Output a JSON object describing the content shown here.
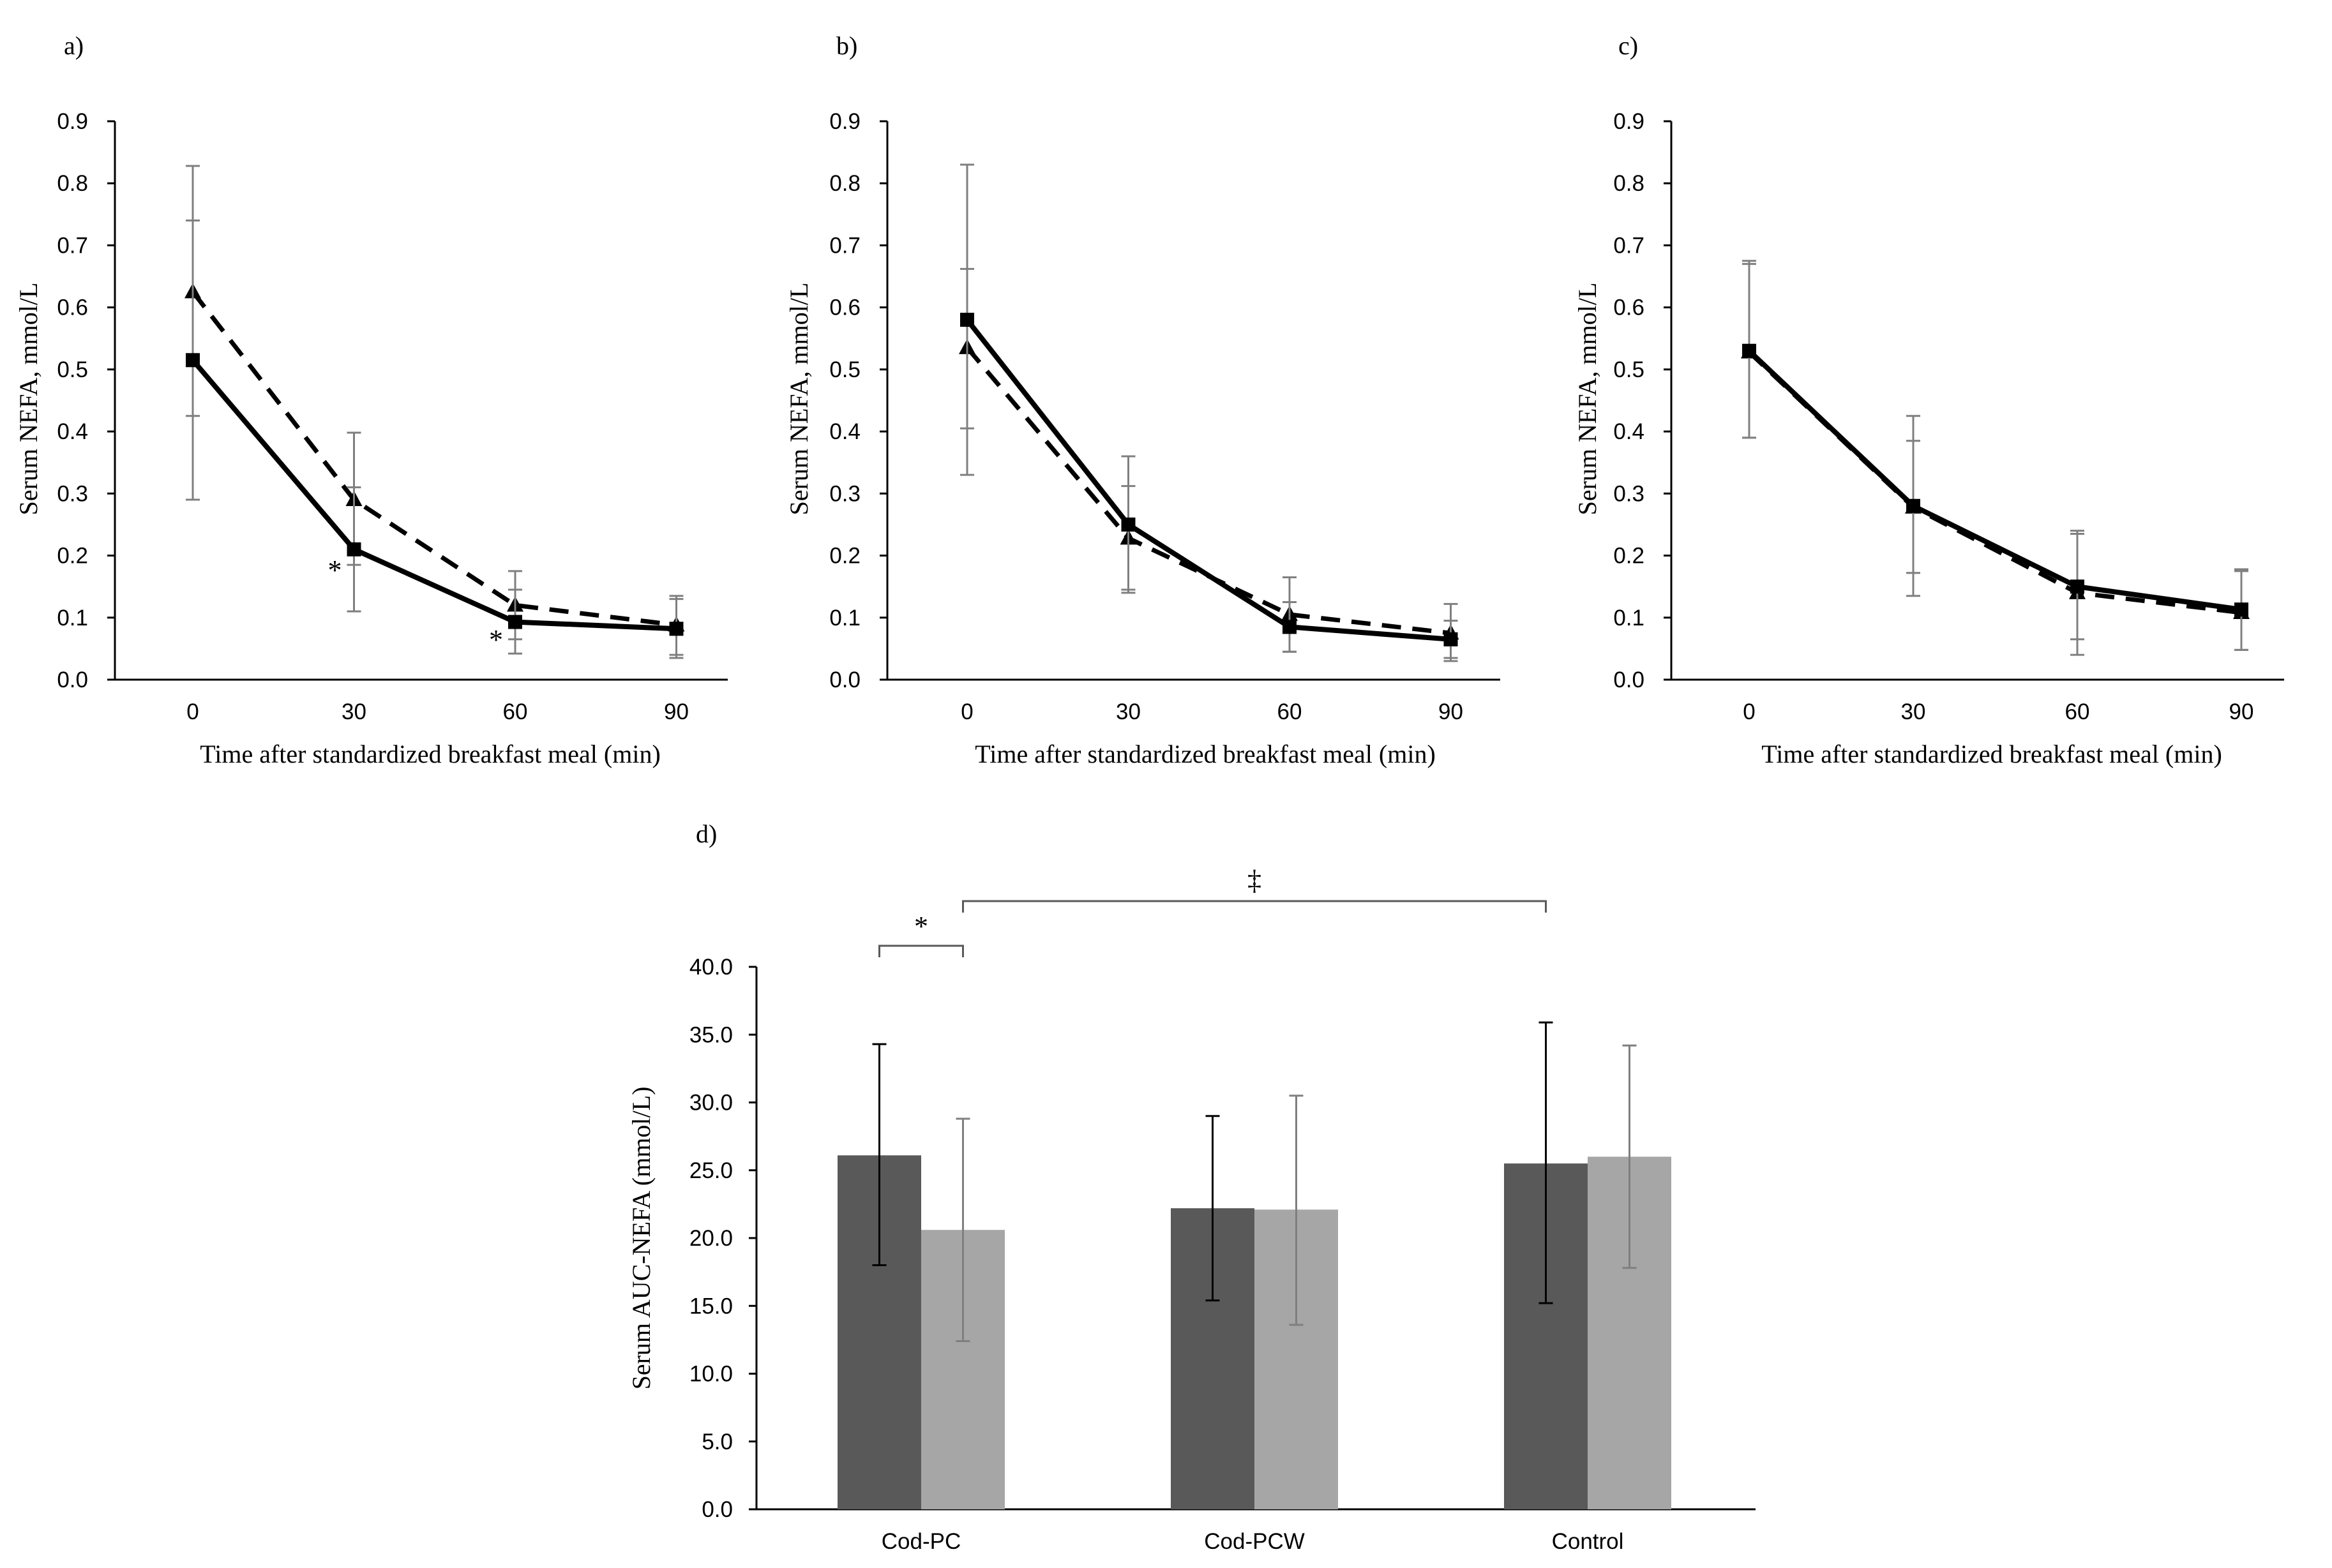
{
  "chart_data": [
    {
      "panel": "a)",
      "type": "line",
      "title": "",
      "xlabel": "Time after standardized breakfast meal (min)",
      "ylabel": "Serum NEFA, mmol/L",
      "x": [
        0,
        30,
        60,
        90
      ],
      "x_tick_labels": [
        "0",
        "30",
        "60",
        "90"
      ],
      "ylim": [
        0.0,
        0.9
      ],
      "y_ticks": [
        "0.0",
        "0.1",
        "0.2",
        "0.3",
        "0.4",
        "0.5",
        "0.6",
        "0.7",
        "0.8",
        "0.9"
      ],
      "grid": false,
      "series": [
        {
          "name": "solid",
          "style": "solid",
          "marker": "square",
          "values": [
            0.515,
            0.21,
            0.093,
            0.082
          ],
          "err_low": [
            0.29,
            0.11,
            0.042,
            0.035
          ],
          "err_high": [
            0.74,
            0.31,
            0.145,
            0.13
          ]
        },
        {
          "name": "dashed",
          "style": "dashed",
          "marker": "triangle",
          "values": [
            0.625,
            0.29,
            0.12,
            0.088
          ],
          "err_low": [
            0.425,
            0.185,
            0.065,
            0.04
          ],
          "err_high": [
            0.828,
            0.398,
            0.175,
            0.135
          ]
        }
      ],
      "annotations": [
        {
          "text": "*",
          "x": 30,
          "y": 0.18
        },
        {
          "text": "*",
          "x": 60,
          "y": 0.068
        }
      ]
    },
    {
      "panel": "b)",
      "type": "line",
      "title": "",
      "xlabel": "Time after standardized breakfast meal (min)",
      "ylabel": "Serum NEFA, mmol/L",
      "x": [
        0,
        30,
        60,
        90
      ],
      "x_tick_labels": [
        "0",
        "30",
        "60",
        "90"
      ],
      "ylim": [
        0.0,
        0.9
      ],
      "y_ticks": [
        "0.0",
        "0.1",
        "0.2",
        "0.3",
        "0.4",
        "0.5",
        "0.6",
        "0.7",
        "0.8",
        "0.9"
      ],
      "grid": false,
      "series": [
        {
          "name": "solid",
          "style": "solid",
          "marker": "square",
          "values": [
            0.58,
            0.25,
            0.085,
            0.065
          ],
          "err_low": [
            0.33,
            0.14,
            0.045,
            0.035
          ],
          "err_high": [
            0.83,
            0.36,
            0.125,
            0.095
          ]
        },
        {
          "name": "dashed",
          "style": "dashed",
          "marker": "triangle",
          "values": [
            0.535,
            0.228,
            0.105,
            0.075
          ],
          "err_low": [
            0.405,
            0.145,
            0.045,
            0.03
          ],
          "err_high": [
            0.662,
            0.312,
            0.165,
            0.122
          ]
        }
      ],
      "annotations": []
    },
    {
      "panel": "c)",
      "type": "line",
      "title": "",
      "xlabel": "Time after standardized breakfast meal (min)",
      "ylabel": "Serum NEFA, mmol/L",
      "x": [
        0,
        30,
        60,
        90
      ],
      "x_tick_labels": [
        "0",
        "30",
        "60",
        "90"
      ],
      "ylim": [
        0.0,
        0.9
      ],
      "y_ticks": [
        "0.0",
        "0.1",
        "0.2",
        "0.3",
        "0.4",
        "0.5",
        "0.6",
        "0.7",
        "0.8",
        "0.9"
      ],
      "grid": false,
      "series": [
        {
          "name": "solid",
          "style": "solid",
          "marker": "square",
          "values": [
            0.53,
            0.28,
            0.15,
            0.113
          ],
          "err_low": [
            0.39,
            0.135,
            0.065,
            0.048
          ],
          "err_high": [
            0.67,
            0.425,
            0.235,
            0.178
          ]
        },
        {
          "name": "dashed",
          "style": "dashed",
          "marker": "triangle",
          "values": [
            0.528,
            0.278,
            0.14,
            0.108
          ],
          "err_low": [
            0.39,
            0.172,
            0.04,
            0.048
          ],
          "err_high": [
            0.675,
            0.385,
            0.24,
            0.175
          ]
        }
      ],
      "annotations": []
    },
    {
      "panel": "d)",
      "type": "bar",
      "title": "",
      "xlabel": "",
      "ylabel": "Serum AUC-NEFA (mmol/L)",
      "categories": [
        "Cod-PC",
        "Cod-PCW",
        "Control"
      ],
      "ylim": [
        0.0,
        40.0
      ],
      "y_ticks": [
        "0.0",
        "5.0",
        "10.0",
        "15.0",
        "20.0",
        "25.0",
        "30.0",
        "35.0",
        "40.0"
      ],
      "grid": false,
      "series": [
        {
          "name": "dark",
          "color": "#595959",
          "values": [
            26.1,
            22.2,
            25.5
          ],
          "err_low": [
            18.0,
            15.4,
            15.2
          ],
          "err_high": [
            34.3,
            29.0,
            35.9
          ],
          "err_color": "#000000"
        },
        {
          "name": "light",
          "color": "#a6a6a6",
          "values": [
            20.6,
            22.1,
            26.0
          ],
          "err_low": [
            12.4,
            13.6,
            17.8
          ],
          "err_high": [
            28.8,
            30.5,
            34.2
          ],
          "err_color": "#7f7f7f"
        }
      ],
      "significance": [
        {
          "text": "*",
          "from": "Cod-PC dark",
          "to": "Cod-PC light"
        },
        {
          "text": "‡",
          "from": "Cod-PC light",
          "to": "Control dark"
        }
      ]
    }
  ]
}
